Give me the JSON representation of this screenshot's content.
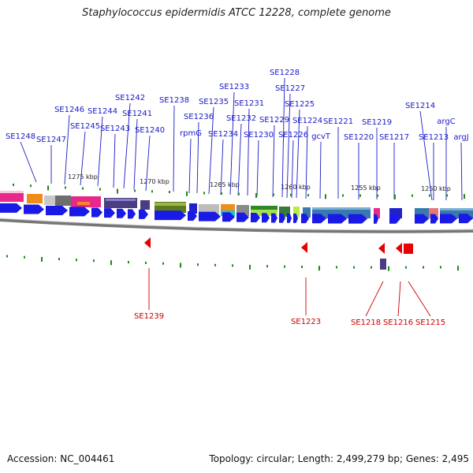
{
  "title": "Staphylococcus epidermidis ATCC 12228, complete genome",
  "accession": "Accession: NC_004461",
  "summary": "Topology: circular; Length: 2,499,279 bp; Genes: 2,495",
  "colors": {
    "forward_gene": "#1a1ae6",
    "reverse_gene": "#e60000",
    "forward_label": "#1a1ac8",
    "reverse_label": "#cc0000",
    "tick": "#1a8a1a",
    "backbone": "#777777"
  },
  "kbp_ticks": [
    "1275 kbp",
    "1270 kbp",
    "1265 kbp",
    "1260 kbp",
    "1255 kbp",
    "1250 kbp"
  ],
  "forward_genes": [
    "SE1248",
    "SE1247",
    "SE1246",
    "SE1245",
    "SE1244",
    "SE1243",
    "SE1242",
    "SE1241",
    "SE1240",
    "SE1238",
    "rpmG",
    "SE1236",
    "SE1235",
    "SE1234",
    "SE1233",
    "SE1232",
    "SE1231",
    "SE1230",
    "SE1229",
    "SE1228",
    "SE1227",
    "SE1226",
    "SE1225",
    "SE1224",
    "gcvT",
    "SE1221",
    "SE1220",
    "SE1219",
    "SE1217",
    "SE1214",
    "SE1213",
    "argC",
    "argJ"
  ],
  "reverse_genes": [
    "SE1239",
    "SE1223",
    "SE1218",
    "SE1216",
    "SE1215"
  ]
}
